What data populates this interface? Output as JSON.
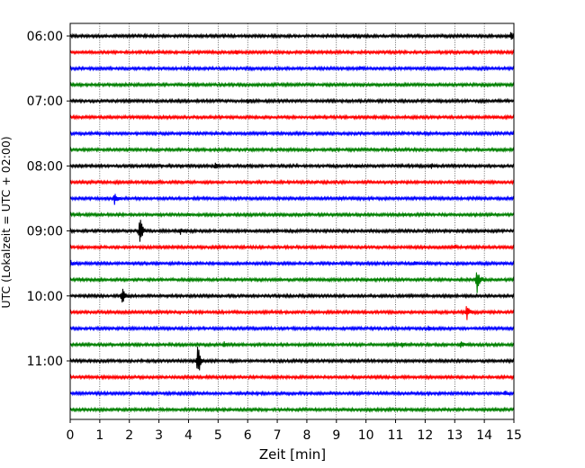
{
  "chart_data": {
    "type": "line",
    "title": "",
    "xlabel": "Zeit  [min]",
    "ylabel": "UTC (Lokalzeit = UTC + 02:00)",
    "xlim": [
      0,
      15
    ],
    "xticks": [
      0,
      1,
      2,
      3,
      4,
      5,
      6,
      7,
      8,
      9,
      10,
      11,
      12,
      13,
      14,
      15
    ],
    "ytick_labels": [
      "06:00",
      "07:00",
      "08:00",
      "09:00",
      "10:00",
      "11:00"
    ],
    "trace_interval_min": 15,
    "trace_start": "06:00",
    "trace_count": 24,
    "color_cycle": [
      "#000000",
      "#ff0000",
      "#0000ff",
      "#008000"
    ],
    "grid": "vertical dotted at each minute",
    "traces": [
      {
        "start": "06:00",
        "events": [
          {
            "t": 9.6,
            "amp": 0.15
          },
          {
            "t": 14.9,
            "amp": 0.22
          }
        ]
      },
      {
        "start": "06:15",
        "events": [
          {
            "t": 5.6,
            "amp": 0.12
          },
          {
            "t": 13.6,
            "amp": 0.12
          }
        ]
      },
      {
        "start": "06:30",
        "events": [
          {
            "t": 9.8,
            "amp": 0.12
          }
        ]
      },
      {
        "start": "06:45",
        "events": []
      },
      {
        "start": "07:00",
        "events": [
          {
            "t": 6.0,
            "amp": 0.1
          }
        ]
      },
      {
        "start": "07:15",
        "events": []
      },
      {
        "start": "07:30",
        "events": []
      },
      {
        "start": "07:45",
        "events": []
      },
      {
        "start": "08:00",
        "events": [
          {
            "t": 4.9,
            "amp": 0.12
          },
          {
            "t": 9.7,
            "amp": 0.12
          },
          {
            "t": 12.2,
            "amp": 0.15
          }
        ]
      },
      {
        "start": "08:15",
        "events": []
      },
      {
        "start": "08:30",
        "events": [
          {
            "t": 1.5,
            "amp": 0.3
          }
        ]
      },
      {
        "start": "08:45",
        "events": []
      },
      {
        "start": "09:00",
        "events": [
          {
            "t": 2.35,
            "amp": 1.0
          },
          {
            "t": 3.7,
            "amp": 0.22
          }
        ]
      },
      {
        "start": "09:15",
        "events": [
          {
            "t": 13.0,
            "amp": 0.15
          }
        ]
      },
      {
        "start": "09:30",
        "events": [
          {
            "t": 0.0,
            "amp": 0.18
          },
          {
            "t": 11.6,
            "amp": 0.12
          }
        ]
      },
      {
        "start": "09:45",
        "events": [
          {
            "t": 13.75,
            "amp": 1.0
          }
        ]
      },
      {
        "start": "10:00",
        "events": [
          {
            "t": 1.75,
            "amp": 0.55
          }
        ]
      },
      {
        "start": "10:15",
        "events": [
          {
            "t": 13.4,
            "amp": 0.45
          }
        ]
      },
      {
        "start": "10:30",
        "events": [
          {
            "t": 12.1,
            "amp": 0.15
          }
        ]
      },
      {
        "start": "10:45",
        "events": [
          {
            "t": 5.2,
            "amp": 0.12
          },
          {
            "t": 11.2,
            "amp": 0.18
          },
          {
            "t": 13.2,
            "amp": 0.15
          }
        ]
      },
      {
        "start": "11:00",
        "events": [
          {
            "t": 4.3,
            "amp": 1.4
          }
        ]
      },
      {
        "start": "11:15",
        "events": []
      },
      {
        "start": "11:30",
        "events": [
          {
            "t": 14.7,
            "amp": 0.15
          }
        ]
      },
      {
        "start": "11:45",
        "events": []
      }
    ]
  }
}
